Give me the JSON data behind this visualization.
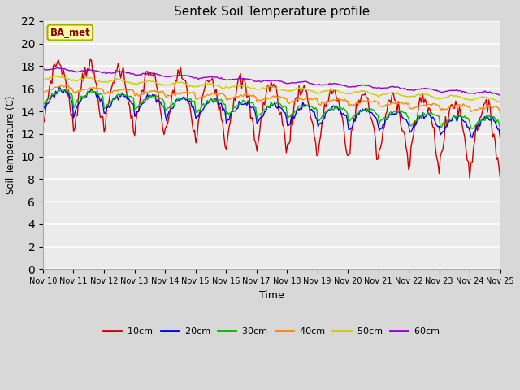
{
  "title": "Sentek Soil Temperature profile",
  "xlabel": "Time",
  "ylabel": "Soil Temperature (C)",
  "ylim": [
    0,
    22
  ],
  "yticks": [
    0,
    2,
    4,
    6,
    8,
    10,
    12,
    14,
    16,
    18,
    20,
    22
  ],
  "annotation_text": "BA_met",
  "colors": {
    "-10cm": "#cc0000",
    "-20cm": "#0000ee",
    "-30cm": "#00bb00",
    "-40cm": "#ff8800",
    "-50cm": "#cccc00",
    "-60cm": "#9900cc"
  },
  "legend_labels": [
    "-10cm",
    "-20cm",
    "-30cm",
    "-40cm",
    "-50cm",
    "-60cm"
  ],
  "background_color": "#d8d8d8",
  "plot_bg_color": "#ebebeb",
  "grid_color": "#ffffff"
}
